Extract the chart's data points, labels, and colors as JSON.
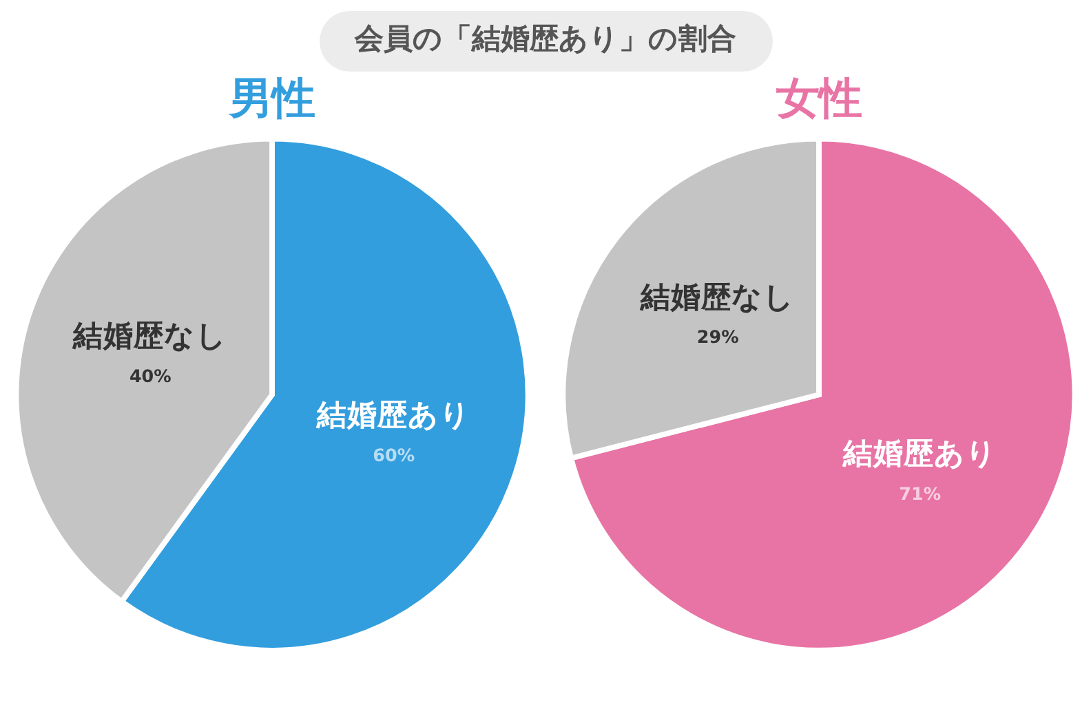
{
  "chart_data": [
    {
      "type": "pie",
      "title": "男性",
      "annotations": [
        "会員の「結婚歴あり」の割合"
      ],
      "categories": [
        "結婚歴あり",
        "結婚歴なし"
      ],
      "values": [
        60,
        40
      ],
      "colors": [
        "#339ede",
        "#c4c4c4"
      ],
      "value_labels": [
        "60%",
        "40%"
      ]
    },
    {
      "type": "pie",
      "title": "女性",
      "categories": [
        "結婚歴あり",
        "結婚歴なし"
      ],
      "values": [
        71,
        29
      ],
      "colors": [
        "#e874a5",
        "#c4c4c4"
      ],
      "value_labels": [
        "71%",
        "29%"
      ]
    }
  ]
}
